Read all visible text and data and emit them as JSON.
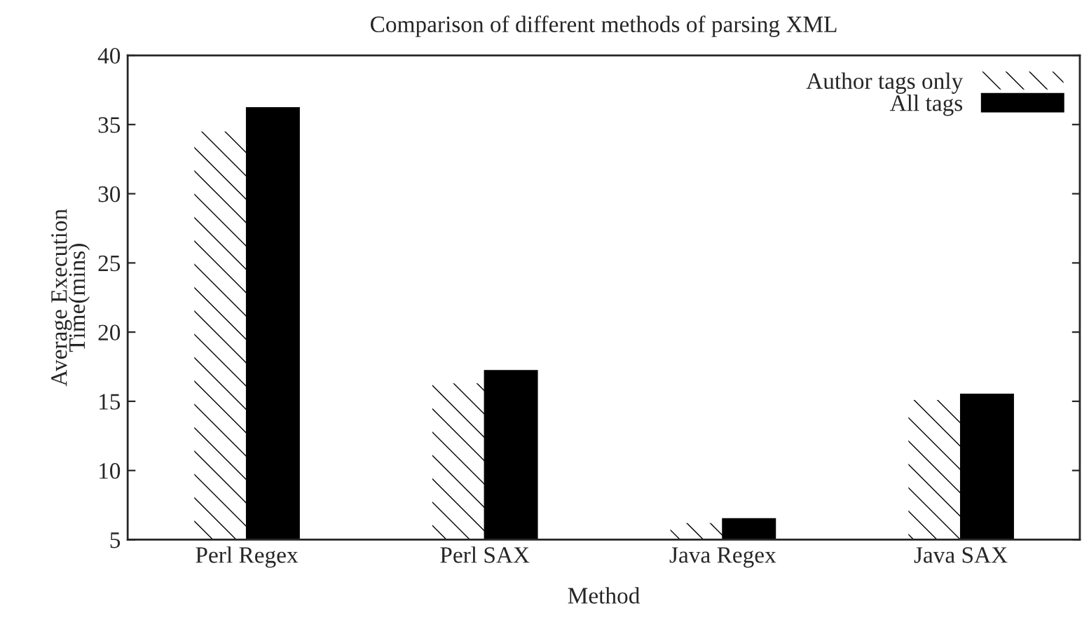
{
  "chart_data": {
    "type": "bar",
    "title": "Comparison of different methods of parsing XML",
    "xlabel": "Method",
    "ylabel": "Average Execution\nTime(mins)",
    "categories": [
      "Perl Regex",
      "Perl SAX",
      "Java Regex",
      "Java SAX"
    ],
    "series": [
      {
        "name": "Author tags only",
        "color": "#ffffff",
        "values": [
          34.5,
          16.3,
          6.2,
          15.1
        ]
      },
      {
        "name": "All tags",
        "color": "#000000",
        "values": [
          36.2,
          17.2,
          6.5,
          15.5
        ]
      }
    ],
    "ylim": [
      5,
      40
    ],
    "yticks": [
      5,
      10,
      15,
      20,
      25,
      30,
      35,
      40
    ],
    "grid": false,
    "legend": "top right"
  }
}
